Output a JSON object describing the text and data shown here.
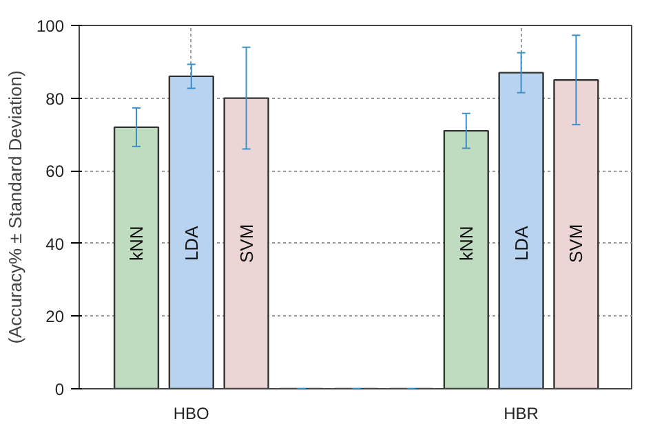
{
  "chart_data": {
    "type": "bar",
    "ylabel": "(Accuracy% ± Standard Deviation)",
    "categories": [
      "HBO",
      null,
      "HBR"
    ],
    "series": [
      {
        "name": "kNN",
        "color": "#bfdcc0",
        "values": [
          72,
          0,
          71
        ],
        "errors": [
          5.3,
          0,
          4.8
        ]
      },
      {
        "name": "LDA",
        "color": "#b8d3f0",
        "values": [
          86,
          0,
          87
        ],
        "errors": [
          3.3,
          0,
          5.5
        ]
      },
      {
        "name": "SVM",
        "color": "#ecd5d5",
        "values": [
          80,
          0,
          85
        ],
        "errors": [
          14,
          0,
          12.3
        ]
      }
    ],
    "ylim": [
      0,
      100
    ],
    "yticks": [
      0,
      20,
      40,
      60,
      80,
      100
    ],
    "grid": true
  }
}
